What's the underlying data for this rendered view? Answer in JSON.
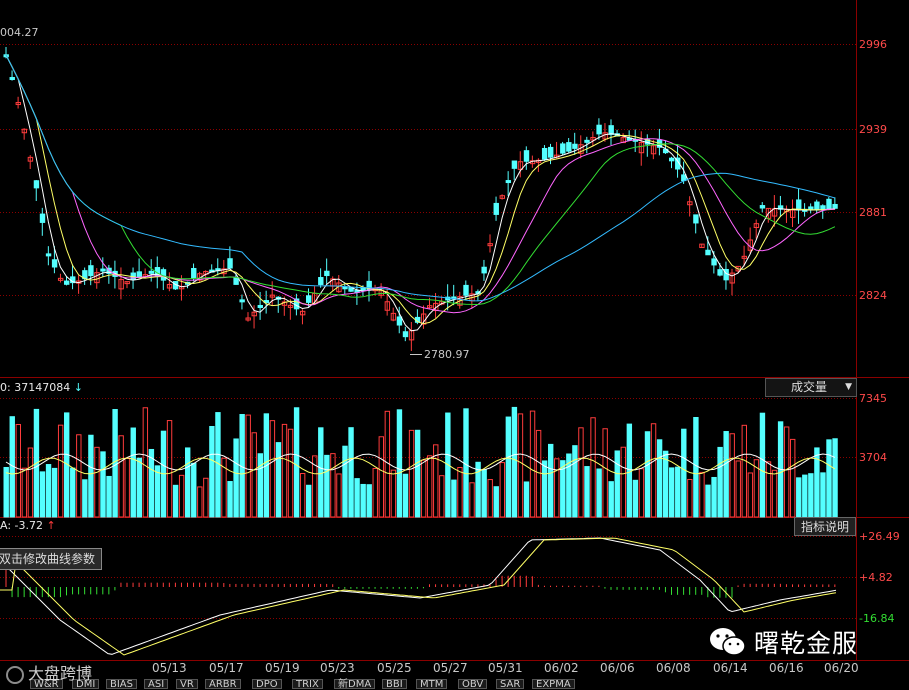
{
  "main_chart": {
    "high_label": "004.27",
    "low_label": "2780.97",
    "price_axis": [
      "2996",
      "2939",
      "2881",
      "2824"
    ]
  },
  "volume_panel": {
    "info": "0: 37147084",
    "info_arrow": "↓",
    "selector_label": "成交量",
    "selector_arrow": "▼",
    "axis": [
      "7345",
      "3704"
    ]
  },
  "macd_panel": {
    "info": "A: -3.72",
    "info_arrow": "↑",
    "help_button": "指标说明",
    "tooltip": "双击修改曲线参数",
    "axis": [
      "+26.49",
      "+4.82",
      "-16.84"
    ]
  },
  "dates": [
    "05/13",
    "05/17",
    "05/19",
    "05/23",
    "05/25",
    "05/27",
    "05/31",
    "06/02",
    "06/06",
    "06/08",
    "06/14",
    "06/16",
    "06/20"
  ],
  "indicator_tabs": [
    "W&R",
    "DMI",
    "BIAS",
    "ASI",
    "VR",
    "ARBR",
    "DPO",
    "TRIX",
    "新DMA",
    "BBI",
    "MTM",
    "OBV",
    "SAR",
    "EXPMA"
  ],
  "watermark": {
    "brand": "曙乾金服",
    "left_text": "大盘跨博"
  },
  "colors": {
    "up": "#ff3c3c",
    "down": "#54ffff",
    "grid": "#8b0000",
    "axis_text": "#ff4a4a",
    "ma5": "#ffffff",
    "ma10": "#ffff66",
    "ma20": "#ff66ff",
    "ma30": "#33dd33",
    "ma60": "#33bbff"
  }
}
